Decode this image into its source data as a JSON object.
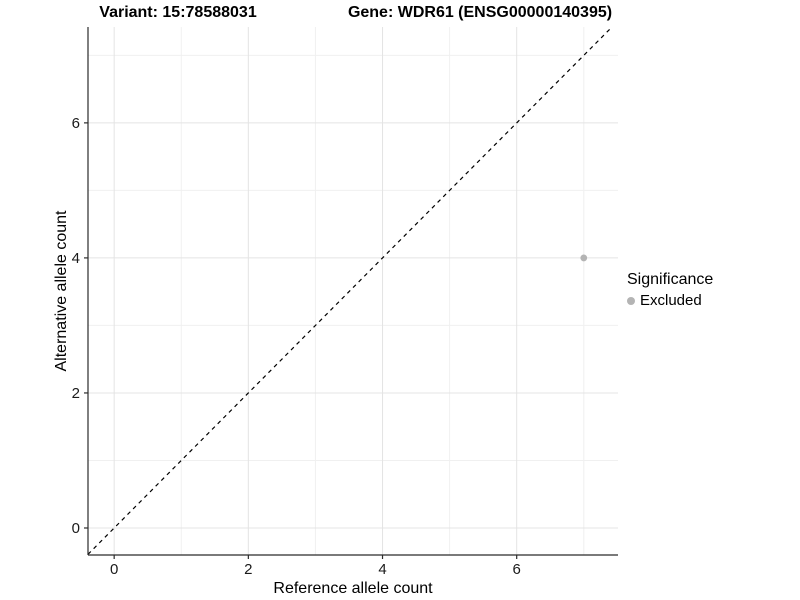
{
  "titles": {
    "left": "Variant: 15:78588031",
    "right": "Gene: WDR61 (ENSG00000140395)"
  },
  "legend": {
    "title": "Significance",
    "items": [
      {
        "label": "Excluded",
        "color": "#b4b4b4"
      }
    ]
  },
  "colors": {
    "background": "#ffffff",
    "grid_major": "#e4e4e4",
    "grid_minor": "#f0f0f0",
    "axis_line": "#2b2b2b",
    "tick_label": "#1a1a1a",
    "reference_line": "#000000",
    "point": "#b4b4b4"
  },
  "chart_data": {
    "type": "scatter",
    "title": "Variant: 15:78588031   Gene: WDR61 (ENSG00000140395)",
    "xlabel": "Reference allele count",
    "ylabel": "Alternative allele count",
    "xlim": [
      -0.39,
      7.51
    ],
    "ylim": [
      -0.4,
      7.42
    ],
    "x_ticks": [
      0,
      2,
      4,
      6
    ],
    "y_ticks": [
      0,
      2,
      4,
      6
    ],
    "x_minor": [
      1,
      3,
      5,
      7
    ],
    "y_minor": [
      1,
      3,
      5,
      7
    ],
    "grid": "on",
    "legend_position": "right",
    "legend_title": "Significance",
    "series": [
      {
        "name": "Excluded",
        "color": "#b4b4b4",
        "points": [
          {
            "x": 7,
            "y": 4
          }
        ]
      }
    ],
    "reference_line": {
      "equation": "y=x",
      "style": "dashed",
      "color": "#000000"
    }
  }
}
